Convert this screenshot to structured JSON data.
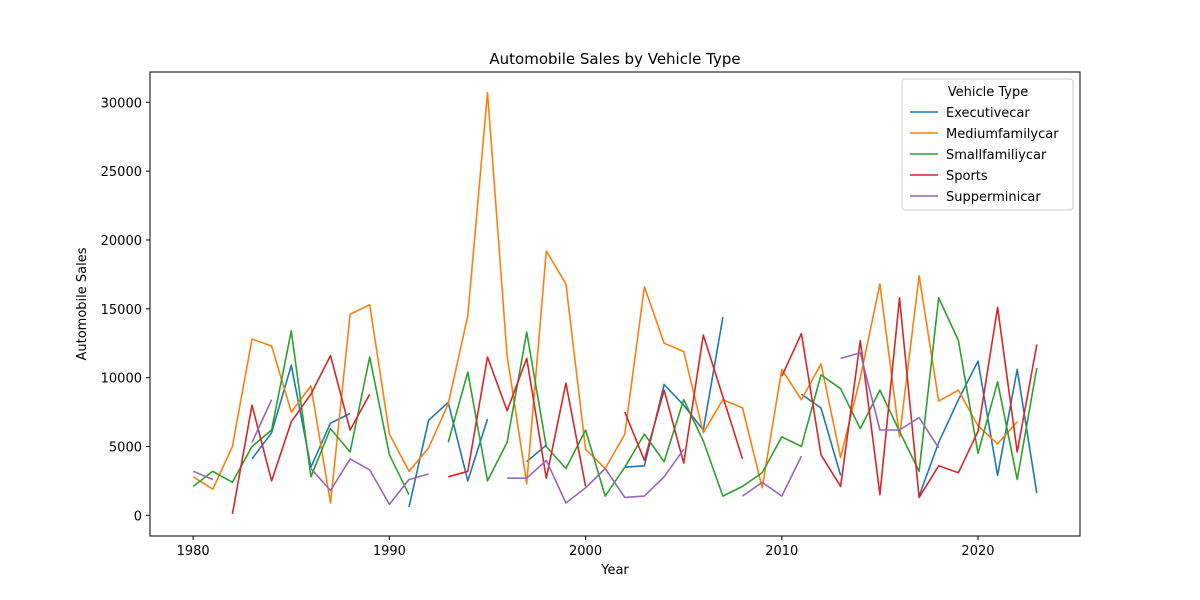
{
  "chart_data": {
    "type": "line",
    "title": "Automobile Sales by Vehicle Type",
    "xlabel": "Year",
    "ylabel": "Automobile Sales",
    "xlim": [
      1977.8,
      2025.2
    ],
    "ylim": [
      -1500,
      32200
    ],
    "xticks": [
      1980,
      1990,
      2000,
      2010,
      2020
    ],
    "yticks": [
      0,
      5000,
      10000,
      15000,
      20000,
      25000,
      30000
    ],
    "grid": false,
    "legend": {
      "title": "Vehicle Type",
      "placement": "top-right"
    },
    "series": [
      {
        "name": "Executivecar",
        "color": "#1f77b4",
        "points": [
          [
            1983,
            4100
          ],
          [
            1984,
            6000
          ],
          [
            1985,
            10900
          ],
          [
            1986,
            3500
          ],
          [
            1987,
            6700
          ],
          [
            1988,
            7400
          ],
          null,
          [
            1991,
            600
          ],
          [
            1992,
            6900
          ],
          [
            1993,
            8200
          ],
          [
            1994,
            2500
          ],
          [
            1995,
            7000
          ],
          null,
          [
            1997,
            3900
          ],
          [
            1998,
            5100
          ],
          null,
          [
            2002,
            3500
          ],
          [
            2003,
            3600
          ],
          [
            2004,
            9500
          ],
          [
            2005,
            8000
          ],
          [
            2006,
            6200
          ],
          [
            2007,
            14400
          ],
          null,
          [
            2011,
            8800
          ],
          [
            2012,
            7800
          ],
          [
            2013,
            2900
          ],
          null,
          [
            2017,
            1400
          ],
          [
            2018,
            5300
          ],
          [
            2019,
            8400
          ],
          [
            2020,
            11200
          ],
          [
            2021,
            2900
          ],
          [
            2022,
            10600
          ],
          [
            2023,
            1600
          ]
        ]
      },
      {
        "name": "Mediumfamilycar",
        "color": "#ff7f0e",
        "points": [
          [
            1980,
            2800
          ],
          [
            1981,
            1900
          ],
          [
            1982,
            5000
          ],
          [
            1983,
            12800
          ],
          [
            1984,
            12300
          ],
          [
            1985,
            7500
          ],
          [
            1986,
            9400
          ],
          [
            1987,
            900
          ],
          [
            1988,
            14600
          ],
          [
            1989,
            15300
          ],
          [
            1990,
            5900
          ],
          [
            1991,
            3200
          ],
          [
            1992,
            4900
          ],
          [
            1993,
            8100
          ],
          [
            1994,
            14500
          ],
          [
            1995,
            30700
          ],
          [
            1996,
            11600
          ],
          [
            1997,
            2300
          ],
          [
            1998,
            19200
          ],
          [
            1999,
            16800
          ],
          [
            2000,
            4800
          ],
          [
            2001,
            3400
          ],
          [
            2002,
            5900
          ],
          [
            2003,
            16600
          ],
          [
            2004,
            12500
          ],
          [
            2005,
            11900
          ],
          [
            2006,
            6000
          ],
          [
            2007,
            8400
          ],
          [
            2008,
            7800
          ],
          [
            2009,
            2000
          ],
          [
            2010,
            10600
          ],
          [
            2011,
            8400
          ],
          [
            2012,
            11000
          ],
          [
            2013,
            4200
          ],
          [
            2014,
            10000
          ],
          [
            2015,
            16800
          ],
          [
            2016,
            5700
          ],
          [
            2017,
            17400
          ],
          [
            2018,
            8300
          ],
          [
            2019,
            9100
          ],
          [
            2020,
            6500
          ],
          [
            2021,
            5200
          ],
          [
            2022,
            6800
          ]
        ]
      },
      {
        "name": "Smallfamiliycar",
        "color": "#2ca02c",
        "points": [
          [
            1980,
            2100
          ],
          [
            1981,
            3200
          ],
          [
            1982,
            2400
          ],
          [
            1983,
            5000
          ],
          [
            1984,
            6200
          ],
          [
            1985,
            13400
          ],
          [
            1986,
            2800
          ],
          [
            1987,
            6300
          ],
          [
            1988,
            4600
          ],
          [
            1989,
            11500
          ],
          [
            1990,
            4400
          ],
          [
            1991,
            1500
          ],
          null,
          [
            1993,
            5300
          ],
          [
            1994,
            10400
          ],
          [
            1995,
            2500
          ],
          [
            1996,
            5300
          ],
          [
            1997,
            13300
          ],
          [
            1998,
            5000
          ],
          [
            1999,
            3400
          ],
          [
            2000,
            6200
          ],
          [
            2001,
            1400
          ],
          [
            2002,
            3500
          ],
          [
            2003,
            5900
          ],
          [
            2004,
            3900
          ],
          [
            2005,
            8400
          ],
          [
            2006,
            5400
          ],
          [
            2007,
            1400
          ],
          [
            2008,
            2100
          ],
          [
            2009,
            3100
          ],
          [
            2010,
            5700
          ],
          [
            2011,
            5000
          ],
          [
            2012,
            10200
          ],
          [
            2013,
            9200
          ],
          [
            2014,
            6300
          ],
          [
            2015,
            9100
          ],
          [
            2016,
            6100
          ],
          [
            2017,
            3200
          ],
          [
            2018,
            15800
          ],
          [
            2019,
            12700
          ],
          [
            2020,
            4500
          ],
          [
            2021,
            9700
          ],
          [
            2022,
            2600
          ],
          [
            2023,
            10700
          ]
        ]
      },
      {
        "name": "Sports",
        "color": "#d62728",
        "points": [
          [
            1982,
            100
          ],
          [
            1983,
            8000
          ],
          [
            1984,
            2500
          ],
          [
            1985,
            6800
          ],
          [
            1986,
            8800
          ],
          [
            1987,
            11600
          ],
          [
            1988,
            6200
          ],
          [
            1989,
            8800
          ],
          null,
          [
            1993,
            2800
          ],
          [
            1994,
            3200
          ],
          [
            1995,
            11500
          ],
          [
            1996,
            7600
          ],
          [
            1997,
            11400
          ],
          [
            1998,
            2700
          ],
          [
            1999,
            9600
          ],
          [
            2000,
            2100
          ],
          null,
          [
            2002,
            7500
          ],
          [
            2003,
            4000
          ],
          [
            2004,
            9100
          ],
          [
            2005,
            3800
          ],
          [
            2006,
            13100
          ],
          [
            2007,
            8600
          ],
          [
            2008,
            4100
          ],
          null,
          [
            2010,
            10100
          ],
          [
            2011,
            13200
          ],
          [
            2012,
            4400
          ],
          [
            2013,
            2100
          ],
          [
            2014,
            12700
          ],
          [
            2015,
            1500
          ],
          [
            2016,
            15800
          ],
          [
            2017,
            1300
          ],
          [
            2018,
            3600
          ],
          [
            2019,
            3100
          ],
          [
            2020,
            6100
          ],
          [
            2021,
            15100
          ],
          [
            2022,
            4600
          ],
          [
            2023,
            12400
          ]
        ]
      },
      {
        "name": "Supperminicar",
        "color": "#9467bd",
        "points": [
          [
            1980,
            3200
          ],
          [
            1981,
            2600
          ],
          null,
          [
            1983,
            5300
          ],
          [
            1984,
            8400
          ],
          null,
          [
            1986,
            3400
          ],
          [
            1987,
            1800
          ],
          [
            1988,
            4100
          ],
          [
            1989,
            3300
          ],
          [
            1990,
            800
          ],
          [
            1991,
            2600
          ],
          [
            1992,
            3000
          ],
          null,
          [
            1996,
            2700
          ],
          [
            1997,
            2700
          ],
          [
            1998,
            4000
          ],
          [
            1999,
            900
          ],
          [
            2000,
            2000
          ],
          [
            2001,
            3400
          ],
          [
            2002,
            1300
          ],
          [
            2003,
            1400
          ],
          [
            2004,
            2800
          ],
          [
            2005,
            4800
          ],
          null,
          [
            2008,
            1400
          ],
          [
            2009,
            2400
          ],
          [
            2010,
            1400
          ],
          [
            2011,
            4300
          ],
          null,
          [
            2013,
            11400
          ],
          [
            2014,
            11800
          ],
          [
            2015,
            6200
          ],
          [
            2016,
            6200
          ],
          [
            2017,
            7100
          ],
          [
            2018,
            4900
          ]
        ]
      }
    ]
  }
}
